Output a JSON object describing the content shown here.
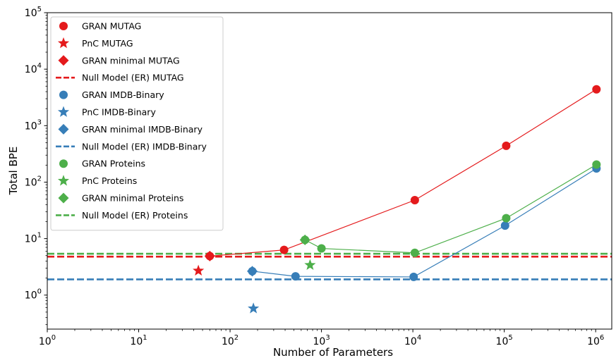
{
  "chart_data": {
    "type": "scatter",
    "title": "",
    "xlabel": "Number of Parameters",
    "ylabel": "Total BPE",
    "xscale": "log",
    "yscale": "log",
    "xlim": [
      1,
      1500000
    ],
    "ylim": [
      0.25,
      100000
    ],
    "x_ticks": [
      {
        "base": "10",
        "exp": "0",
        "value": 1
      },
      {
        "base": "10",
        "exp": "1",
        "value": 10
      },
      {
        "base": "10",
        "exp": "2",
        "value": 100
      },
      {
        "base": "10",
        "exp": "3",
        "value": 1000
      },
      {
        "base": "10",
        "exp": "4",
        "value": 10000
      },
      {
        "base": "10",
        "exp": "5",
        "value": 100000
      },
      {
        "base": "10",
        "exp": "6",
        "value": 1000000
      }
    ],
    "y_ticks": [
      {
        "base": "10",
        "exp": "0",
        "value": 1
      },
      {
        "base": "10",
        "exp": "1",
        "value": 10
      },
      {
        "base": "10",
        "exp": "2",
        "value": 100
      },
      {
        "base": "10",
        "exp": "3",
        "value": 1000
      },
      {
        "base": "10",
        "exp": "4",
        "value": 10000
      },
      {
        "base": "10",
        "exp": "5",
        "value": 100000
      }
    ],
    "grid": false,
    "legend_position": "top-left",
    "colors": {
      "mutag": "#e41a1c",
      "imdb": "#377eb8",
      "proteins": "#4daf4a"
    },
    "series": [
      {
        "name": "GRAN MUTAG",
        "kind": "line-circle",
        "color": "#e41a1c",
        "x": [
          60,
          390,
          10500,
          105000,
          1020000
        ],
        "y": [
          4.9,
          6.3,
          48,
          440,
          4400
        ]
      },
      {
        "name": "PnC MUTAG",
        "kind": "star",
        "color": "#e41a1c",
        "x": [
          45
        ],
        "y": [
          2.7
        ]
      },
      {
        "name": "GRAN minimal MUTAG",
        "kind": "diamond",
        "color": "#e41a1c",
        "x": [
          60
        ],
        "y": [
          4.9
        ]
      },
      {
        "name": "Null Model (ER) MUTAG",
        "kind": "hline",
        "color": "#e41a1c",
        "y": 4.8
      },
      {
        "name": "GRAN IMDB-Binary",
        "kind": "line-circle",
        "color": "#377eb8",
        "x": [
          175,
          520,
          10200,
          102000,
          1020000
        ],
        "y": [
          2.65,
          2.15,
          2.1,
          17,
          175
        ]
      },
      {
        "name": "PnC IMDB-Binary",
        "kind": "star",
        "color": "#377eb8",
        "x": [
          180
        ],
        "y": [
          0.58
        ]
      },
      {
        "name": "GRAN minimal IMDB-Binary",
        "kind": "diamond",
        "color": "#377eb8",
        "x": [
          175
        ],
        "y": [
          2.65
        ]
      },
      {
        "name": "Null Model (ER) IMDB-Binary",
        "kind": "hline",
        "color": "#377eb8",
        "y": 1.9
      },
      {
        "name": "GRAN Proteins",
        "kind": "line-circle",
        "color": "#4daf4a",
        "x": [
          660,
          1000,
          10500,
          105000,
          1020000
        ],
        "y": [
          9.5,
          6.7,
          5.6,
          23,
          205
        ]
      },
      {
        "name": "PnC Proteins",
        "kind": "star",
        "color": "#4daf4a",
        "x": [
          750
        ],
        "y": [
          3.4
        ]
      },
      {
        "name": "GRAN minimal Proteins",
        "kind": "diamond",
        "color": "#4daf4a",
        "x": [
          660
        ],
        "y": [
          9.5
        ]
      },
      {
        "name": "Null Model (ER) Proteins",
        "kind": "hline",
        "color": "#4daf4a",
        "y": 5.4
      }
    ]
  }
}
